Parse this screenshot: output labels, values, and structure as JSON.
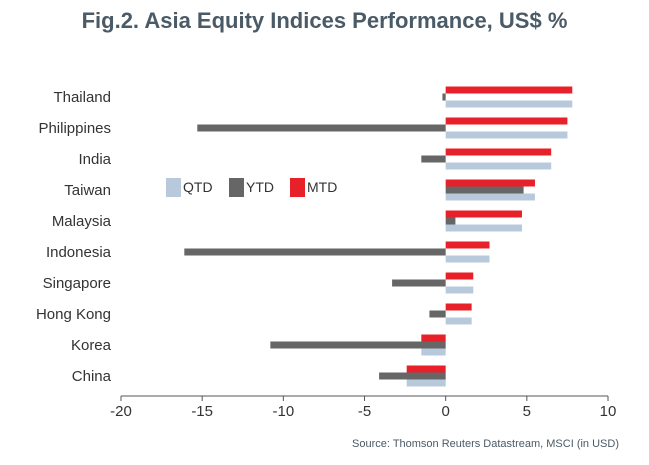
{
  "chart_data": {
    "type": "bar",
    "orientation": "horizontal",
    "title": "Fig.2. Asia Equity Indices Performance, US$ %",
    "source": "Source: Thomson Reuters Datastream, MSCI (in USD)",
    "categories": [
      "Thailand",
      "Philippines",
      "India",
      "Taiwan",
      "Malaysia",
      "Indonesia",
      "Singapore",
      "Hong Kong",
      "Korea",
      "China"
    ],
    "series": [
      {
        "name": "MTD",
        "color": "#e8202a",
        "values": [
          7.8,
          7.5,
          6.5,
          5.5,
          4.7,
          2.7,
          1.7,
          1.6,
          -1.5,
          -2.4
        ]
      },
      {
        "name": "YTD",
        "color": "#666666",
        "values": [
          -0.2,
          -15.3,
          -1.5,
          4.8,
          0.6,
          -16.1,
          -3.3,
          -1.0,
          -10.8,
          -4.1
        ]
      },
      {
        "name": "QTD",
        "color": "#b8c9dc",
        "values": [
          7.8,
          7.5,
          6.5,
          5.5,
          4.7,
          2.7,
          1.7,
          1.6,
          -1.5,
          -2.4
        ]
      }
    ],
    "legend": [
      "QTD",
      "YTD",
      "MTD"
    ],
    "xlim": [
      -20,
      10
    ],
    "xticks": [
      -20,
      -15,
      -10,
      -5,
      0,
      5,
      10
    ],
    "tick_labels": [
      "-20",
      "-15",
      "-10",
      "-5",
      "0",
      "5",
      "10"
    ]
  }
}
